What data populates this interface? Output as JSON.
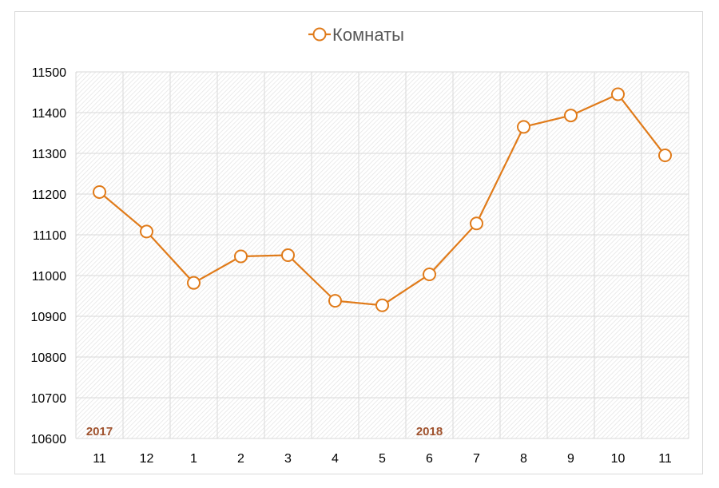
{
  "chart_data": {
    "type": "line",
    "categories": [
      "11",
      "12",
      "1",
      "2",
      "3",
      "4",
      "5",
      "6",
      "7",
      "8",
      "9",
      "10",
      "11"
    ],
    "series": [
      {
        "name": "Комнаты",
        "values": [
          11205,
          11108,
          10982,
          11047,
          11050,
          10938,
          10927,
          11003,
          11128,
          11365,
          11393,
          11445,
          11295
        ],
        "color": "#E07B1A"
      }
    ],
    "ylim": [
      10600,
      11500
    ],
    "yticks": [
      "10600",
      "10700",
      "10800",
      "10900",
      "11000",
      "11100",
      "11200",
      "11300",
      "11400",
      "11500"
    ],
    "legend_position": "top",
    "grid": true,
    "group_labels": [
      {
        "text": "2017",
        "category_index": 0
      },
      {
        "text": "2018",
        "category_index": 7
      }
    ],
    "group_label_color": "#A0522D",
    "grid_color": "#d9d9d9",
    "axis_text_color": "#000000"
  }
}
